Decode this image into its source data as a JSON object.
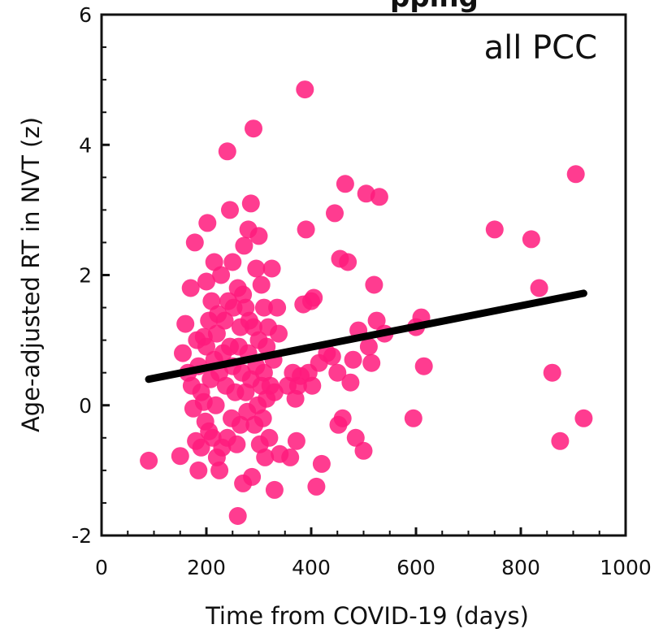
{
  "chart_data": {
    "type": "scatter",
    "title": "",
    "title_partial": "pping",
    "annotation": "all PCC",
    "xlabel": "Time from COVID-19 (days)",
    "ylabel": "Age-adjusted RT in NVT (z)",
    "xlim": [
      0,
      1000
    ],
    "ylim": [
      -2,
      6
    ],
    "x_ticks": [
      0,
      200,
      400,
      600,
      800,
      1000
    ],
    "y_ticks": [
      -2,
      0,
      2,
      4,
      6
    ],
    "grid": false,
    "legend": "none",
    "point_color": "#FF1A7D",
    "line_color": "#000000",
    "fit_line": {
      "x": [
        90,
        920
      ],
      "y": [
        0.4,
        1.72
      ]
    },
    "series": [
      {
        "points": [
          [
            90,
            -0.85
          ],
          [
            150,
            -0.78
          ],
          [
            155,
            0.8
          ],
          [
            160,
            1.25
          ],
          [
            165,
            0.5
          ],
          [
            170,
            1.8
          ],
          [
            172,
            0.3
          ],
          [
            175,
            -0.05
          ],
          [
            178,
            2.5
          ],
          [
            180,
            -0.55
          ],
          [
            182,
            1.0
          ],
          [
            185,
            0.6
          ],
          [
            185,
            -1.0
          ],
          [
            190,
            0.2
          ],
          [
            190,
            -0.65
          ],
          [
            195,
            1.05
          ],
          [
            195,
            0.05
          ],
          [
            198,
            -0.25
          ],
          [
            200,
            1.9
          ],
          [
            200,
            0.9
          ],
          [
            202,
            2.8
          ],
          [
            205,
            -0.4
          ],
          [
            205,
            1.3
          ],
          [
            208,
            0.4
          ],
          [
            210,
            1.6
          ],
          [
            212,
            -0.5
          ],
          [
            215,
            0.7
          ],
          [
            215,
            2.2
          ],
          [
            218,
            0.0
          ],
          [
            220,
            1.1
          ],
          [
            220,
            -0.8
          ],
          [
            222,
            1.4
          ],
          [
            225,
            0.5
          ],
          [
            225,
            -1.0
          ],
          [
            228,
            2.0
          ],
          [
            230,
            -0.65
          ],
          [
            232,
            0.8
          ],
          [
            235,
            1.3
          ],
          [
            237,
            0.3
          ],
          [
            240,
            3.9
          ],
          [
            240,
            -0.5
          ],
          [
            242,
            1.6
          ],
          [
            245,
            0.9
          ],
          [
            245,
            3.0
          ],
          [
            248,
            -0.2
          ],
          [
            250,
            2.2
          ],
          [
            250,
            0.6
          ],
          [
            252,
            1.5
          ],
          [
            255,
            0.2
          ],
          [
            258,
            -0.6
          ],
          [
            260,
            1.8
          ],
          [
            260,
            -1.7
          ],
          [
            262,
            0.9
          ],
          [
            265,
            1.2
          ],
          [
            265,
            -0.3
          ],
          [
            268,
            0.5
          ],
          [
            270,
            -1.2
          ],
          [
            270,
            1.7
          ],
          [
            272,
            2.45
          ],
          [
            275,
            0.2
          ],
          [
            275,
            1.5
          ],
          [
            278,
            -0.1
          ],
          [
            280,
            0.8
          ],
          [
            280,
            2.7
          ],
          [
            282,
            1.3
          ],
          [
            285,
            0.4
          ],
          [
            285,
            3.1
          ],
          [
            287,
            -1.1
          ],
          [
            290,
            4.25
          ],
          [
            290,
            1.2
          ],
          [
            292,
            -0.3
          ],
          [
            295,
            0.6
          ],
          [
            295,
            2.1
          ],
          [
            298,
            0.0
          ],
          [
            300,
            1.0
          ],
          [
            300,
            2.6
          ],
          [
            302,
            -0.6
          ],
          [
            305,
            1.85
          ],
          [
            305,
            0.3
          ],
          [
            308,
            -0.2
          ],
          [
            310,
            1.5
          ],
          [
            310,
            0.5
          ],
          [
            312,
            -0.8
          ],
          [
            315,
            0.9
          ],
          [
            315,
            0.1
          ],
          [
            318,
            1.2
          ],
          [
            320,
            -0.5
          ],
          [
            322,
            0.3
          ],
          [
            325,
            2.1
          ],
          [
            328,
            0.7
          ],
          [
            330,
            -1.3
          ],
          [
            330,
            0.2
          ],
          [
            335,
            1.5
          ],
          [
            338,
            1.1
          ],
          [
            340,
            -0.75
          ],
          [
            355,
            0.3
          ],
          [
            360,
            -0.8
          ],
          [
            365,
            0.5
          ],
          [
            370,
            0.1
          ],
          [
            372,
            -0.55
          ],
          [
            375,
            0.3
          ],
          [
            380,
            0.45
          ],
          [
            385,
            1.55
          ],
          [
            388,
            4.85
          ],
          [
            390,
            2.7
          ],
          [
            395,
            0.5
          ],
          [
            400,
            1.6
          ],
          [
            402,
            0.3
          ],
          [
            405,
            1.65
          ],
          [
            410,
            -1.25
          ],
          [
            415,
            0.65
          ],
          [
            420,
            -0.9
          ],
          [
            430,
            0.8
          ],
          [
            440,
            0.75
          ],
          [
            445,
            2.95
          ],
          [
            450,
            0.5
          ],
          [
            452,
            -0.3
          ],
          [
            455,
            2.25
          ],
          [
            460,
            -0.2
          ],
          [
            465,
            3.4
          ],
          [
            470,
            2.2
          ],
          [
            475,
            0.35
          ],
          [
            480,
            0.7
          ],
          [
            485,
            -0.5
          ],
          [
            490,
            1.15
          ],
          [
            500,
            -0.7
          ],
          [
            505,
            3.25
          ],
          [
            510,
            0.9
          ],
          [
            515,
            0.65
          ],
          [
            520,
            1.85
          ],
          [
            525,
            1.3
          ],
          [
            530,
            3.2
          ],
          [
            540,
            1.1
          ],
          [
            595,
            -0.2
          ],
          [
            600,
            1.2
          ],
          [
            610,
            1.35
          ],
          [
            615,
            0.6
          ],
          [
            750,
            2.7
          ],
          [
            820,
            2.55
          ],
          [
            835,
            1.8
          ],
          [
            860,
            0.5
          ],
          [
            875,
            -0.55
          ],
          [
            905,
            3.55
          ],
          [
            920,
            -0.2
          ]
        ]
      }
    ]
  }
}
